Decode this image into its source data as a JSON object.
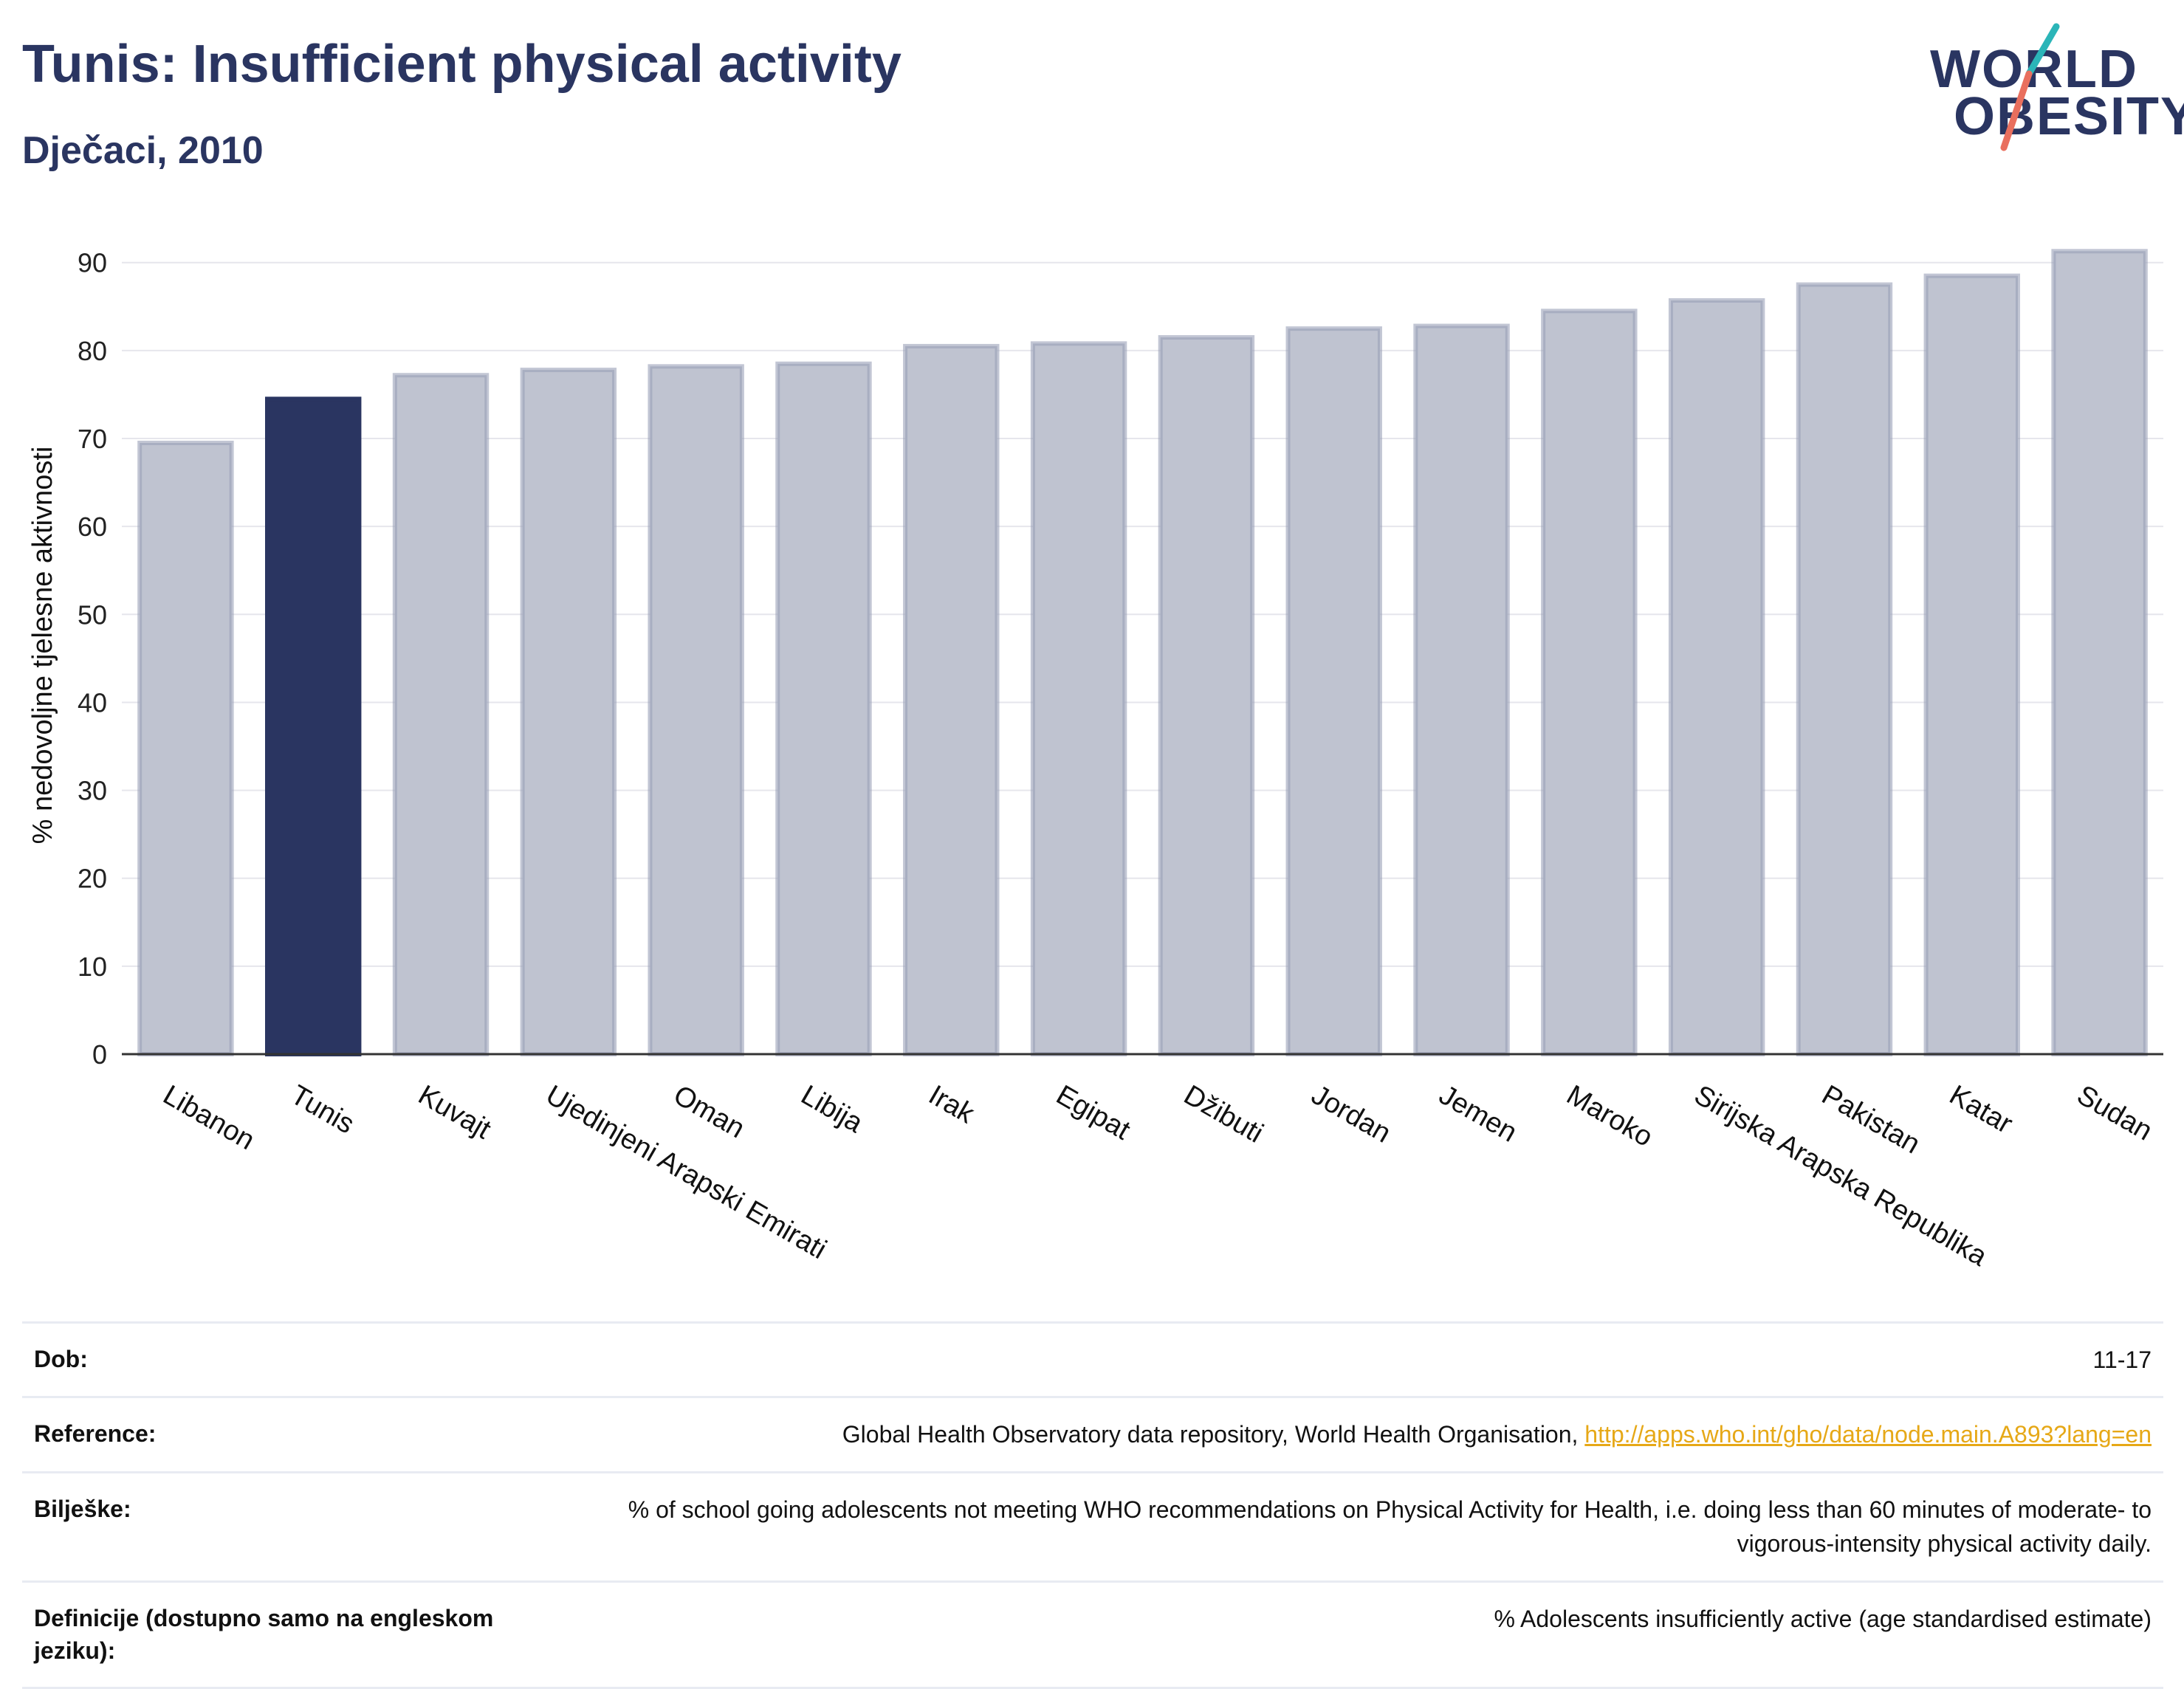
{
  "title": "Tunis: Insufficient physical activity",
  "subtitle": "Dječaci, 2010",
  "logo": {
    "line1": "WORLD",
    "line2": "OBESITY",
    "accent_teal": "#2bb5b8",
    "accent_coral": "#e96f5e"
  },
  "colors": {
    "highlight": "#2a3561",
    "bar": "#bfc3d0",
    "bar_edge": "#9aa0b8",
    "axis": "#333333",
    "grid": "#e6e6ec",
    "link": "#e6a817"
  },
  "chart_data": {
    "type": "bar",
    "ylabel": "% nedovoljne tjelesne aktivnosti",
    "ylim": [
      0,
      93
    ],
    "yticks": [
      0,
      10,
      20,
      30,
      40,
      50,
      60,
      70,
      80,
      90
    ],
    "grid": true,
    "highlight": "Tunis",
    "categories": [
      "Libanon",
      "Tunis",
      "Kuvajt",
      "Ujedinjeni Arapski Emirati",
      "Oman",
      "Libija",
      "Irak",
      "Egipat",
      "Džibuti",
      "Jordan",
      "Jemen",
      "Maroko",
      "Sirijska Arapska Republika",
      "Pakistan",
      "Katar",
      "Sudan"
    ],
    "values": [
      69.5,
      74.5,
      77.2,
      77.8,
      78.2,
      78.5,
      80.5,
      80.8,
      81.5,
      82.5,
      82.8,
      84.5,
      85.7,
      87.5,
      88.5,
      91.3
    ]
  },
  "table": {
    "rows": [
      {
        "label": "Dob:",
        "value": "11-17"
      },
      {
        "label": "Reference:",
        "value": "Global Health Observatory data repository, World Health Organisation, ",
        "link": "http://apps.who.int/gho/data/node.main.A893?lang=en"
      },
      {
        "label": "Bilješke:",
        "value": "% of school going adolescents not meeting WHO recommendations on Physical Activity for Health, i.e. doing less than 60 minutes of moderate- to vigorous-intensity physical activity daily."
      },
      {
        "label": "Definicije (dostupno samo na engleskom jeziku):",
        "value": "% Adolescents insufficiently active (age standardised estimate)"
      }
    ]
  }
}
